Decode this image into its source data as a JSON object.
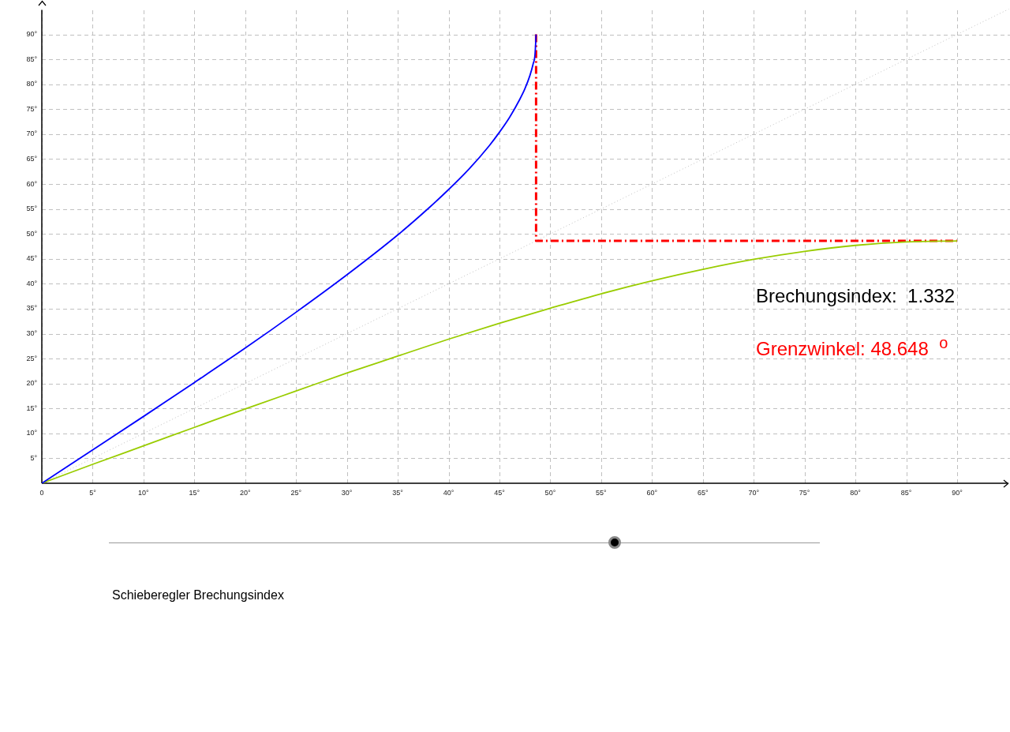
{
  "chart_data": {
    "type": "line",
    "xlim": [
      0,
      95.2
    ],
    "ylim": [
      0,
      95.1
    ],
    "xticks": [
      {
        "value": 0,
        "label": "0"
      },
      {
        "value": 5,
        "label": "5°"
      },
      {
        "value": 10,
        "label": "10°"
      },
      {
        "value": 15,
        "label": "15°"
      },
      {
        "value": 20,
        "label": "20°"
      },
      {
        "value": 25,
        "label": "25°"
      },
      {
        "value": 30,
        "label": "30°"
      },
      {
        "value": 35,
        "label": "35°"
      },
      {
        "value": 40,
        "label": "40°"
      },
      {
        "value": 45,
        "label": "45°"
      },
      {
        "value": 50,
        "label": "50°"
      },
      {
        "value": 55,
        "label": "55°"
      },
      {
        "value": 60,
        "label": "60°"
      },
      {
        "value": 65,
        "label": "65°"
      },
      {
        "value": 70,
        "label": "70°"
      },
      {
        "value": 75,
        "label": "75°"
      },
      {
        "value": 80,
        "label": "80°"
      },
      {
        "value": 85,
        "label": "85°"
      },
      {
        "value": 90,
        "label": "90°"
      }
    ],
    "yticks": [
      {
        "value": 5,
        "label": "5°"
      },
      {
        "value": 10,
        "label": "10°"
      },
      {
        "value": 15,
        "label": "15°"
      },
      {
        "value": 20,
        "label": "20°"
      },
      {
        "value": 25,
        "label": "25°"
      },
      {
        "value": 30,
        "label": "30°"
      },
      {
        "value": 35,
        "label": "35°"
      },
      {
        "value": 40,
        "label": "40°"
      },
      {
        "value": 45,
        "label": "45°"
      },
      {
        "value": 50,
        "label": "50°"
      },
      {
        "value": 55,
        "label": "55°"
      },
      {
        "value": 60,
        "label": "60°"
      },
      {
        "value": 65,
        "label": "65°"
      },
      {
        "value": 70,
        "label": "70°"
      },
      {
        "value": 75,
        "label": "75°"
      },
      {
        "value": 80,
        "label": "80°"
      },
      {
        "value": 85,
        "label": "85°"
      },
      {
        "value": 90,
        "label": "90°"
      }
    ],
    "grid": true,
    "series": [
      {
        "color": "#c0c0c0",
        "line_style": "dotted",
        "x": [
          0,
          95.1
        ],
        "values": [
          0,
          95.1
        ]
      },
      {
        "color": "#ff0000",
        "line_style": "dashed",
        "x": [
          48.6,
          48.6,
          90
        ],
        "values": [
          90,
          48.6,
          48.6
        ]
      },
      {
        "color": "#99cc00",
        "line_style": "solid",
        "x": [
          0,
          5,
          10,
          15,
          20,
          25,
          30,
          35,
          40,
          45,
          50,
          55,
          60,
          65,
          70,
          75,
          80,
          85,
          90
        ],
        "values": [
          0,
          3.8,
          7.5,
          11.2,
          14.9,
          18.5,
          22.1,
          25.5,
          28.9,
          32.1,
          35.1,
          38.0,
          40.6,
          42.9,
          44.9,
          46.5,
          47.7,
          48.4,
          48.6
        ]
      },
      {
        "color": "#0000ff",
        "line_style": "solid",
        "x": [
          0,
          5,
          10,
          15,
          20,
          25,
          30,
          35,
          38,
          40,
          42,
          44,
          45,
          46,
          47,
          47.5,
          48,
          48.3,
          48.5,
          48.6
        ],
        "values": [
          0,
          6.7,
          13.4,
          20.2,
          27.1,
          34.3,
          41.8,
          49.8,
          55.1,
          58.9,
          63.0,
          67.7,
          70.4,
          73.4,
          77.0,
          79.1,
          81.8,
          84.0,
          86.1,
          90
        ]
      }
    ],
    "annotations": [
      "Brechungsindex:  1.332",
      "Grenzwinkel: 48.648  $^{o}$",
      "Schieberegler Brechungsindex"
    ]
  }
}
